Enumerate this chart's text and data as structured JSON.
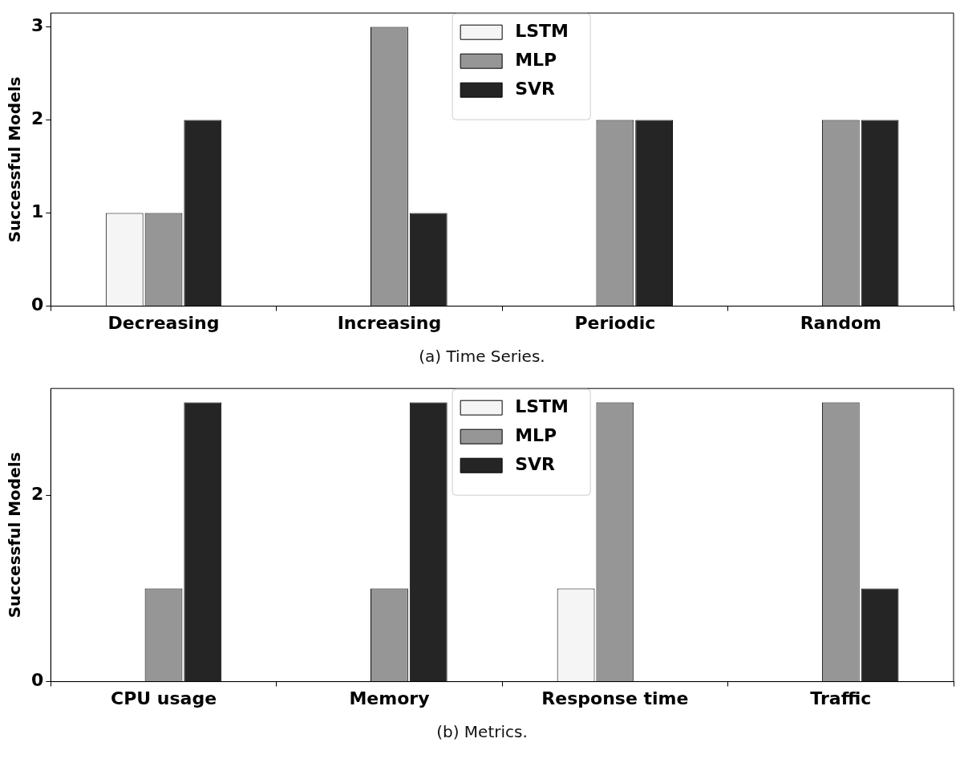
{
  "chart_data": [
    {
      "type": "bar",
      "ylabel": "Successful Models",
      "categories": [
        "Decreasing",
        "Increasing",
        "Periodic",
        "Random"
      ],
      "series": [
        {
          "name": "LSTM",
          "color": "#f5f5f5",
          "values": [
            1,
            0,
            0,
            0
          ]
        },
        {
          "name": "MLP",
          "color": "#969696",
          "values": [
            1,
            3,
            2,
            2
          ]
        },
        {
          "name": "SVR",
          "color": "#252525",
          "values": [
            2,
            1,
            2,
            2
          ]
        }
      ],
      "ylim": [
        0,
        3.15
      ],
      "yticks": [
        0,
        1,
        2,
        3
      ],
      "grid": false,
      "legend": "top",
      "annotations": [
        "(a) Time Series."
      ]
    },
    {
      "type": "bar",
      "ylabel": "Successful Models",
      "categories": [
        "CPU usage",
        "Memory",
        "Response time",
        "Traffic"
      ],
      "series": [
        {
          "name": "LSTM",
          "color": "#f5f5f5",
          "values": [
            0,
            0,
            1,
            0
          ]
        },
        {
          "name": "MLP",
          "color": "#969696",
          "values": [
            1,
            1,
            3,
            3
          ]
        },
        {
          "name": "SVR",
          "color": "#252525",
          "values": [
            3,
            3,
            0,
            1
          ]
        }
      ],
      "ylim": [
        0,
        3.15
      ],
      "yticks": [
        0,
        2
      ],
      "grid": false,
      "legend": "top",
      "annotations": [
        "(b) Metrics."
      ]
    }
  ]
}
